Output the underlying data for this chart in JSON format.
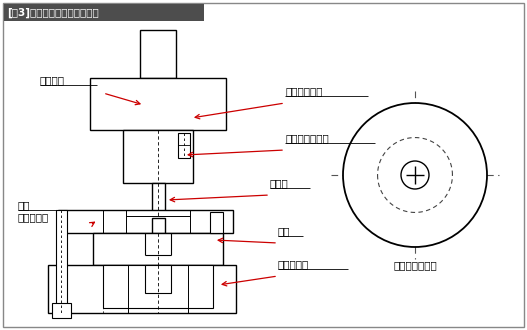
{
  "title": "[嘦3]固定しわ押さえ初紞り型",
  "bg_color": "#ffffff",
  "border_color": "#888888",
  "line_color": "#000000",
  "red": "#cc0000",
  "label_shank": "シャンク",
  "label_punch_holder": "パンチホルダ",
  "label_punch_plate": "パンチプレート",
  "label_punch": "パンチ",
  "label_kotei": "固定",
  "label_shiwa": "しわ押さえ",
  "label_die": "ダイ",
  "label_die_holder": "ダイホルダ",
  "label_stripper": "ストリッパ平面"
}
